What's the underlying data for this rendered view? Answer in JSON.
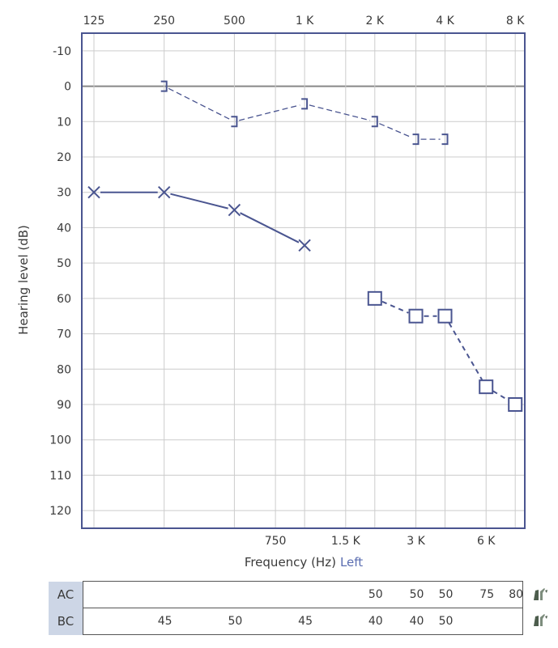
{
  "chart_data": {
    "type": "line",
    "title": "",
    "xlabel": "Frequency (Hz)",
    "ear": "Left",
    "ylabel": "Hearing level (dB)",
    "ylim": [
      -15,
      125
    ],
    "y_ticks": [
      -10,
      0,
      10,
      20,
      30,
      40,
      50,
      60,
      70,
      80,
      90,
      100,
      110,
      120
    ],
    "x_top_ticks": [
      {
        "hz": 125,
        "label": "125"
      },
      {
        "hz": 250,
        "label": "250"
      },
      {
        "hz": 500,
        "label": "500"
      },
      {
        "hz": 1000,
        "label": "1 K"
      },
      {
        "hz": 2000,
        "label": "2 K"
      },
      {
        "hz": 4000,
        "label": "4 K"
      },
      {
        "hz": 8000,
        "label": "8 K"
      }
    ],
    "x_bottom_ticks": [
      {
        "hz": 750,
        "label": "750"
      },
      {
        "hz": 1500,
        "label": "1.5 K"
      },
      {
        "hz": 3000,
        "label": "3 K"
      },
      {
        "hz": 6000,
        "label": "6 K"
      }
    ],
    "series": [
      {
        "symbol": "bc-bracket",
        "points": [
          {
            "hz": 250,
            "db": 0
          },
          {
            "hz": 500,
            "db": 10
          },
          {
            "hz": 1000,
            "db": 5
          },
          {
            "hz": 2000,
            "db": 10
          },
          {
            "hz": 3000,
            "db": 15
          },
          {
            "hz": 4000,
            "db": 15
          }
        ]
      },
      {
        "symbol": "ac-x",
        "points": [
          {
            "hz": 125,
            "db": 30
          },
          {
            "hz": 250,
            "db": 30
          },
          {
            "hz": 500,
            "db": 35
          },
          {
            "hz": 1000,
            "db": 45
          }
        ]
      },
      {
        "symbol": "ac-square",
        "points": [
          {
            "hz": 2000,
            "db": 60
          },
          {
            "hz": 3000,
            "db": 65
          },
          {
            "hz": 4000,
            "db": 65
          },
          {
            "hz": 6000,
            "db": 85
          },
          {
            "hz": 8000,
            "db": 90
          }
        ]
      }
    ],
    "colors": {
      "grid": "#cccccc",
      "frame": "#4a5590",
      "zero_line": "#888888",
      "data": "#4a5590",
      "ear_label": "#5a6db0"
    }
  },
  "masking": {
    "rows": [
      {
        "label": "AC",
        "values": [
          {
            "hz": 2000,
            "value": "50"
          },
          {
            "hz": 3000,
            "value": "50"
          },
          {
            "hz": 4000,
            "value": "50"
          },
          {
            "hz": 6000,
            "value": "75"
          },
          {
            "hz": 8000,
            "value": "80"
          }
        ]
      },
      {
        "label": "BC",
        "values": [
          {
            "hz": 250,
            "value": "45"
          },
          {
            "hz": 500,
            "value": "50"
          },
          {
            "hz": 1000,
            "value": "45"
          },
          {
            "hz": 2000,
            "value": "40"
          },
          {
            "hz": 3000,
            "value": "40"
          },
          {
            "hz": 4000,
            "value": "50"
          }
        ]
      }
    ],
    "icon": "masking-headphone-icon"
  }
}
